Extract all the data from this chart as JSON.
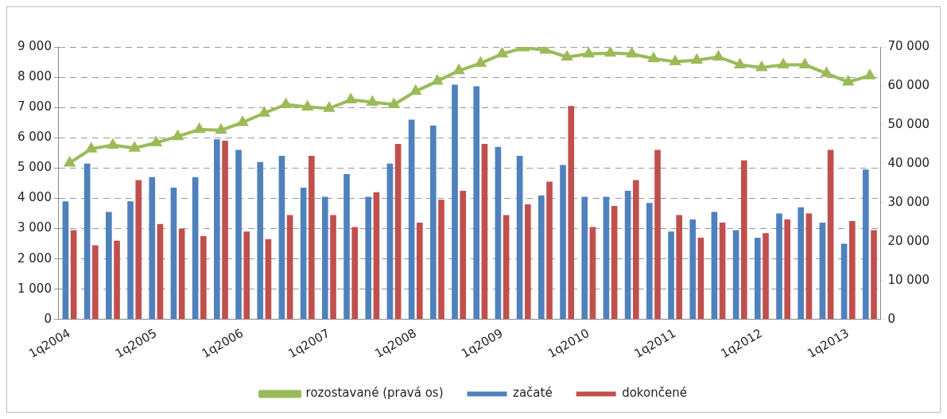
{
  "chart_data": {
    "type": "bar",
    "categories": [
      "1q2004",
      null,
      null,
      null,
      "1q2005",
      null,
      null,
      null,
      "1q2006",
      null,
      null,
      null,
      "1q2007",
      null,
      null,
      null,
      "1q2008",
      null,
      null,
      null,
      "1q2009",
      null,
      null,
      null,
      "1q2010",
      null,
      null,
      null,
      "1q2011",
      null,
      null,
      null,
      "1q2012",
      null,
      null,
      null,
      "1q2013",
      null
    ],
    "series": [
      {
        "name": "začaté",
        "color": "#4f81bd",
        "values": [
          3900,
          5150,
          3550,
          3900,
          4700,
          4350,
          4700,
          5950,
          5600,
          5200,
          5400,
          4350,
          4050,
          4800,
          4050,
          5150,
          6600,
          6400,
          7750,
          7700,
          5700,
          5400,
          4100,
          5100,
          4050,
          4050,
          4250,
          3850,
          2900,
          3300,
          3550,
          2950,
          2700,
          3500,
          3700,
          3200,
          2500,
          4950
        ]
      },
      {
        "name": "dokončené",
        "color": "#c0504d",
        "values": [
          2950,
          2450,
          2600,
          4600,
          3150,
          3000,
          2750,
          5900,
          2900,
          2650,
          3450,
          5400,
          3450,
          3050,
          4200,
          5800,
          3200,
          3950,
          4250,
          5800,
          3450,
          3800,
          4550,
          7050,
          3050,
          3750,
          4600,
          5600,
          3450,
          2700,
          3200,
          5250,
          2850,
          3300,
          3500,
          5600,
          3250,
          2950
        ]
      },
      {
        "name": "rozostavané (pravá os)",
        "color": "#9bbb59",
        "type": "line",
        "axis": "y2",
        "marker": "triangle",
        "values": [
          40200,
          43800,
          44800,
          44000,
          45400,
          47000,
          48800,
          48600,
          50600,
          53000,
          55200,
          54600,
          54200,
          56400,
          55800,
          55200,
          58600,
          61200,
          63900,
          65800,
          68200,
          69800,
          69200,
          67400,
          68200,
          68400,
          68200,
          67000,
          66200,
          66600,
          67400,
          65400,
          64700,
          65400,
          65400,
          63200,
          61000,
          62600
        ]
      }
    ],
    "ylim": [
      0,
      9000
    ],
    "yticks": [
      {
        "value": 0,
        "label": "0"
      },
      {
        "value": 1000,
        "label": "1 000"
      },
      {
        "value": 2000,
        "label": "2 000"
      },
      {
        "value": 3000,
        "label": "3 000"
      },
      {
        "value": 4000,
        "label": "4 000"
      },
      {
        "value": 5000,
        "label": "5 000"
      },
      {
        "value": 6000,
        "label": "6 000"
      },
      {
        "value": 7000,
        "label": "7 000"
      },
      {
        "value": 8000,
        "label": "8 000"
      },
      {
        "value": 9000,
        "label": "9 000"
      }
    ],
    "y2lim": [
      0,
      70000
    ],
    "y2ticks": [
      {
        "value": 0,
        "label": "0"
      },
      {
        "value": 10000,
        "label": "10 000"
      },
      {
        "value": 20000,
        "label": "20 000"
      },
      {
        "value": 30000,
        "label": "30 000"
      },
      {
        "value": 40000,
        "label": "40 000"
      },
      {
        "value": 50000,
        "label": "50 000"
      },
      {
        "value": 60000,
        "label": "60 000"
      },
      {
        "value": 70000,
        "label": "70 000"
      }
    ],
    "grid": "y",
    "legend": "bottom"
  }
}
